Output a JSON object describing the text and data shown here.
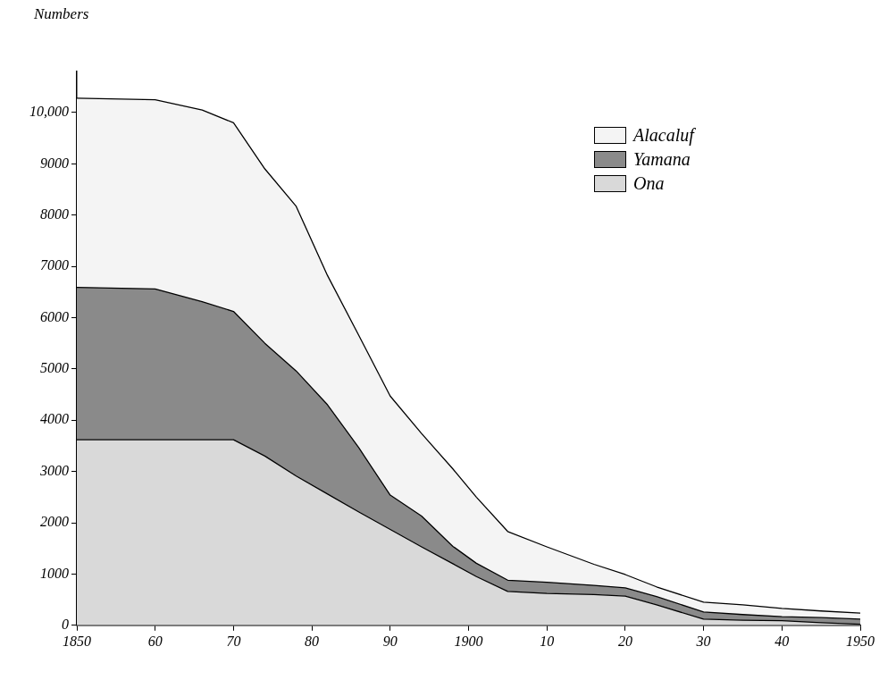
{
  "chart_data": {
    "type": "area",
    "stacked": true,
    "ylabel": "Numbers",
    "x": [
      1850,
      1860,
      1866,
      1870,
      1874,
      1878,
      1882,
      1886,
      1890,
      1894,
      1898,
      1901,
      1905,
      1910,
      1916,
      1920,
      1924,
      1930,
      1935,
      1940,
      1945,
      1950
    ],
    "series": [
      {
        "name": "Ona",
        "color": "#d9d9d9",
        "values": [
          3620,
          3620,
          3620,
          3620,
          3300,
          2910,
          2560,
          2210,
          1870,
          1530,
          1200,
          950,
          660,
          620,
          600,
          570,
          400,
          120,
          100,
          90,
          50,
          20
        ]
      },
      {
        "name": "Yamana",
        "color": "#8a8a8a",
        "values": [
          2970,
          2940,
          2690,
          2500,
          2200,
          2050,
          1740,
          1250,
          670,
          600,
          340,
          260,
          220,
          220,
          180,
          160,
          160,
          140,
          110,
          80,
          100,
          100
        ]
      },
      {
        "name": "Alacaluf",
        "color": "#f4f4f4",
        "values": [
          3690,
          3690,
          3740,
          3680,
          3400,
          3210,
          2520,
          2190,
          1930,
          1610,
          1510,
          1290,
          950,
          690,
          410,
          260,
          190,
          190,
          190,
          160,
          130,
          120
        ]
      }
    ],
    "xlim": [
      1850,
      1950
    ],
    "xticks": [
      1850,
      {
        "value": 1860,
        "label": "60"
      },
      {
        "value": 1870,
        "label": "70"
      },
      {
        "value": 1880,
        "label": "80"
      },
      {
        "value": 1890,
        "label": "90"
      },
      1900,
      {
        "value": 1910,
        "label": "10"
      },
      {
        "value": 1920,
        "label": "20"
      },
      {
        "value": 1930,
        "label": "30"
      },
      {
        "value": 1940,
        "label": "40"
      },
      1950
    ],
    "ylim": [
      0,
      10800
    ],
    "yticks": [
      0,
      1000,
      2000,
      3000,
      4000,
      5000,
      6000,
      7000,
      8000,
      9000,
      {
        "value": 10000,
        "label": "10,000"
      }
    ],
    "grid": false,
    "legend": "top right"
  }
}
